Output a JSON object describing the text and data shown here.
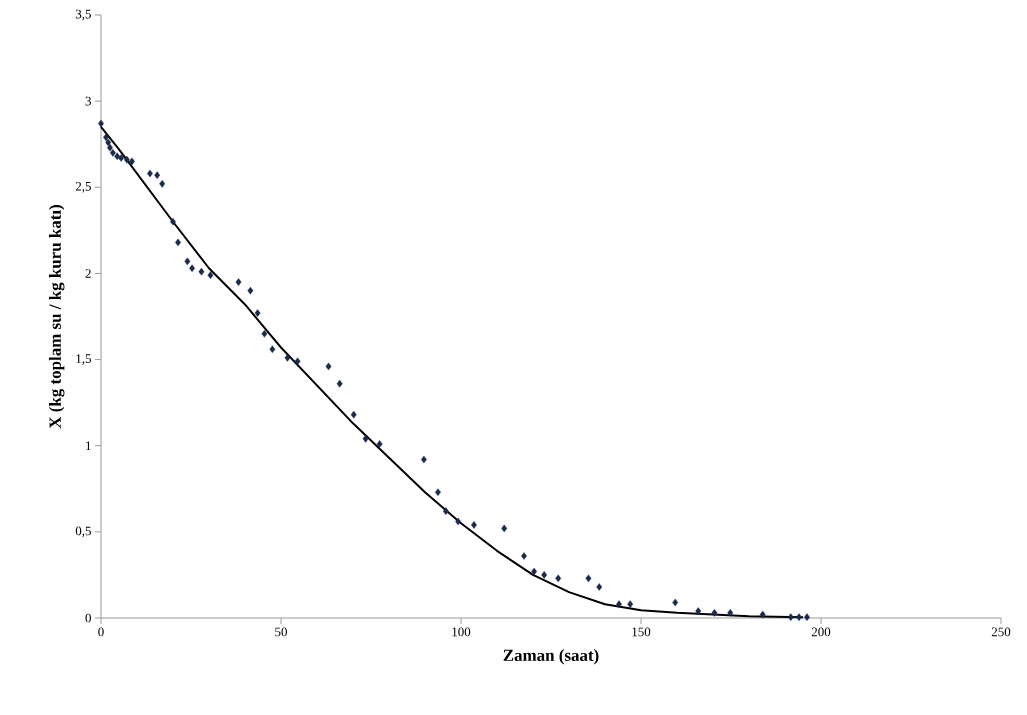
{
  "chart_data": {
    "type": "scatter",
    "xlabel": "Zaman  (saat)",
    "ylabel": "X (kg toplam su / kg kuru katı)",
    "xlim": [
      0,
      250
    ],
    "ylim": [
      0,
      3.5
    ],
    "xticks": [
      0,
      50,
      100,
      150,
      200,
      250
    ],
    "yticks": [
      {
        "value": 0,
        "label": "0"
      },
      {
        "value": 0.5,
        "label": "0,5"
      },
      {
        "value": 1,
        "label": "1"
      },
      {
        "value": 1.5,
        "label": "1,5"
      },
      {
        "value": 2,
        "label": "2"
      },
      {
        "value": 2.5,
        "label": "2,5"
      },
      {
        "value": 3,
        "label": "3"
      },
      {
        "value": 3.5,
        "label": "3,5"
      }
    ],
    "grid": false,
    "marker": "diamond",
    "series": [
      {
        "color": "#1a2a4a",
        "x": [
          0,
          1.4,
          2,
          2.5,
          3.3,
          4.5,
          5.6,
          7.2,
          8.6,
          13.6,
          15.6,
          17,
          20,
          21.4,
          24,
          25.3,
          27.9,
          30.4,
          38.2,
          41.5,
          43.5,
          45.4,
          47.6,
          51.8,
          54.6,
          63.2,
          66.3,
          70.2,
          73.5,
          77.4,
          89.7,
          93.6,
          95.8,
          99.2,
          103.6,
          112,
          117.5,
          120.3,
          123.1,
          127,
          135.4,
          138.4,
          143.9,
          147,
          159.5,
          165.9,
          170.4,
          174.8,
          183.8,
          191.6,
          193.9,
          196.1
        ],
        "values": [
          2.87,
          2.79,
          2.76,
          2.73,
          2.7,
          2.68,
          2.67,
          2.66,
          2.65,
          2.58,
          2.57,
          2.52,
          2.3,
          2.18,
          2.07,
          2.03,
          2.01,
          1.99,
          1.95,
          1.9,
          1.77,
          1.65,
          1.56,
          1.51,
          1.49,
          1.46,
          1.36,
          1.18,
          1.04,
          1.01,
          0.92,
          0.73,
          0.62,
          0.56,
          0.54,
          0.52,
          0.36,
          0.27,
          0.25,
          0.23,
          0.23,
          0.18,
          0.08,
          0.08,
          0.09,
          0.04,
          0.03,
          0.03,
          0.02,
          0.005,
          0.005,
          0.005
        ]
      },
      {
        "type": "line",
        "color": "#000000",
        "marker": "none",
        "line_style": "solid",
        "x": [
          0,
          5,
          10,
          20,
          30,
          40,
          50,
          60,
          70,
          80,
          90,
          100,
          110,
          120,
          130,
          140,
          150,
          160,
          170,
          180,
          195
        ],
        "values": [
          2.85,
          2.72,
          2.58,
          2.3,
          2.03,
          1.82,
          1.57,
          1.35,
          1.13,
          0.93,
          0.73,
          0.55,
          0.39,
          0.25,
          0.15,
          0.08,
          0.045,
          0.03,
          0.02,
          0.01,
          0.005
        ]
      }
    ]
  }
}
